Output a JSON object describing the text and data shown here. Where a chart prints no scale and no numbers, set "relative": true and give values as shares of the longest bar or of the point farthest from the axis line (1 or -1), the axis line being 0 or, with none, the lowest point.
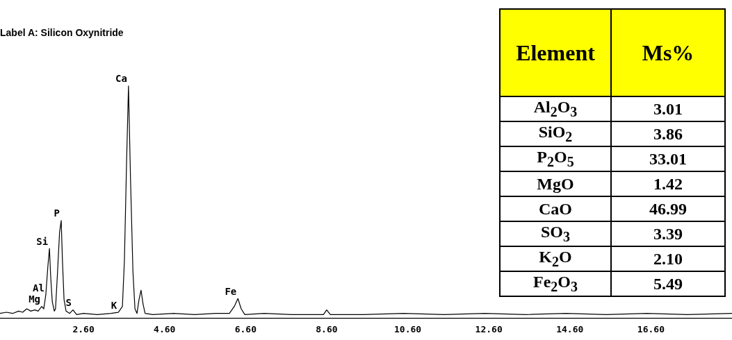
{
  "chart_data": [
    {
      "type": "line",
      "title": "Label A: Silicon Oxynitride",
      "relative": true,
      "marker": "none",
      "grid": false,
      "legend": false,
      "tick_labels": "x",
      "xlim": [
        0.54,
        18.6
      ],
      "xticks": [
        {
          "value": 2.6,
          "label": "2.60"
        },
        {
          "value": 4.6,
          "label": "4.60"
        },
        {
          "value": 6.6,
          "label": "6.60"
        },
        {
          "value": 8.6,
          "label": "8.60"
        },
        {
          "value": 10.6,
          "label": "10.60"
        },
        {
          "value": 12.6,
          "label": "12.60"
        },
        {
          "value": 14.6,
          "label": "14.60"
        },
        {
          "value": 16.6,
          "label": "16.60"
        }
      ],
      "series": [
        {
          "color": "#000000",
          "x": [
            0.54,
            0.7,
            0.85,
            1.0,
            1.1,
            1.2,
            1.3,
            1.4,
            1.48,
            1.57,
            1.62,
            1.67,
            1.72,
            1.76,
            1.79,
            1.83,
            1.88,
            1.91,
            1.96,
            2.01,
            2.05,
            2.08,
            2.12,
            2.17,
            2.26,
            2.34,
            2.43,
            2.6,
            2.94,
            3.28,
            3.46,
            3.56,
            3.61,
            3.66,
            3.71,
            3.76,
            3.82,
            3.87,
            3.92,
            3.97,
            4.02,
            4.07,
            4.12,
            4.31,
            4.83,
            5.34,
            5.86,
            6.2,
            6.32,
            6.41,
            6.49,
            6.58,
            7.06,
            7.74,
            8.52,
            8.6,
            8.69,
            9.5,
            10.5,
            11.5,
            12.5,
            13.5,
            14.5,
            15.5,
            16.5,
            17.5,
            18.6
          ],
          "values": [
            0.02,
            0.025,
            0.02,
            0.03,
            0.025,
            0.04,
            0.03,
            0.035,
            0.03,
            0.05,
            0.04,
            0.1,
            0.22,
            0.3,
            0.18,
            0.07,
            0.03,
            0.04,
            0.2,
            0.37,
            0.42,
            0.25,
            0.08,
            0.03,
            0.02,
            0.035,
            0.015,
            0.02,
            0.015,
            0.02,
            0.025,
            0.05,
            0.25,
            0.65,
            1.0,
            0.6,
            0.2,
            0.04,
            0.02,
            0.08,
            0.12,
            0.06,
            0.02,
            0.015,
            0.02,
            0.015,
            0.02,
            0.02,
            0.05,
            0.084,
            0.04,
            0.015,
            0.02,
            0.015,
            0.015,
            0.035,
            0.015,
            0.015,
            0.02,
            0.015,
            0.02,
            0.015,
            0.02,
            0.015,
            0.02,
            0.015,
            0.02
          ]
        }
      ],
      "annotations": [
        {
          "text": "Mg",
          "x": 1.57,
          "y": 0.05
        },
        {
          "text": "Al",
          "x": 1.67,
          "y": 0.1
        },
        {
          "text": "Si",
          "x": 1.76,
          "y": 0.3
        },
        {
          "text": "P",
          "x": 2.05,
          "y": 0.42
        },
        {
          "text": "S",
          "x": 2.34,
          "y": 0.035
        },
        {
          "text": "K",
          "x": 3.46,
          "y": 0.025
        },
        {
          "text": "Ca",
          "x": 3.71,
          "y": 1.0
        },
        {
          "text": "Fe",
          "x": 6.41,
          "y": 0.084
        }
      ]
    },
    {
      "type": "other",
      "annotations": [
        "Element",
        "Ms%",
        "Al$_{2}$O$_{3}$",
        "3.01",
        "SiO$_{2}$",
        "3.86",
        "P$_{2}$O$_{5}$",
        "33.01",
        "MgO",
        "1.42",
        "CaO",
        "46.99",
        "SO$_{3}$",
        "3.39",
        "K$_{2}$O",
        "2.10",
        "Fe$_{2}$O$_{3}$",
        "5.49"
      ]
    }
  ]
}
